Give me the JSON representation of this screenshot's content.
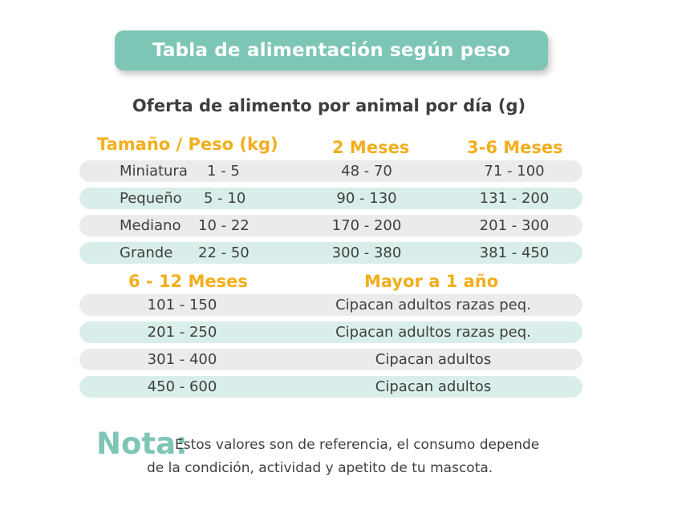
{
  "banner": {
    "title": "Tabla de alimentación según peso"
  },
  "subtitle": "Oferta de alimento por animal por día (g)",
  "table1": {
    "headers": [
      "Tamaño / Peso (kg)",
      "2 Meses",
      "3-6 Meses"
    ],
    "rows": [
      {
        "size": "Miniatura",
        "weight": "1 - 5",
        "m2": "48 - 70",
        "m3_6": "71 - 100"
      },
      {
        "size": "Pequeño",
        "weight": "5 - 10",
        "m2": "90 - 130",
        "m3_6": "131 - 200"
      },
      {
        "size": "Mediano",
        "weight": "10 - 22",
        "m2": "170 - 200",
        "m3_6": "201 - 300"
      },
      {
        "size": "Grande",
        "weight": "22 - 50",
        "m2": "300 - 380",
        "m3_6": "381 - 450"
      }
    ]
  },
  "table2": {
    "headers": [
      "6 - 12 Meses",
      "Mayor a 1 año"
    ],
    "rows": [
      {
        "m6_12": "101 - 150",
        "adult": "Cipacan adultos razas peq."
      },
      {
        "m6_12": "201 - 250",
        "adult": "Cipacan adultos razas peq."
      },
      {
        "m6_12": "301 - 400",
        "adult": "Cipacan adultos"
      },
      {
        "m6_12": "450 - 600",
        "adult": "Cipacan adultos"
      }
    ]
  },
  "note": {
    "label": "Nota:",
    "line1": "Estos valores son de referencia, el consumo depende",
    "line2": "de la condición, actividad y apetito de tu mascota."
  },
  "colors": {
    "accent": "#7dc6b6",
    "header": "#f2ae1c",
    "row_gray": "#ebebeb",
    "row_mint": "#d9eeea"
  }
}
